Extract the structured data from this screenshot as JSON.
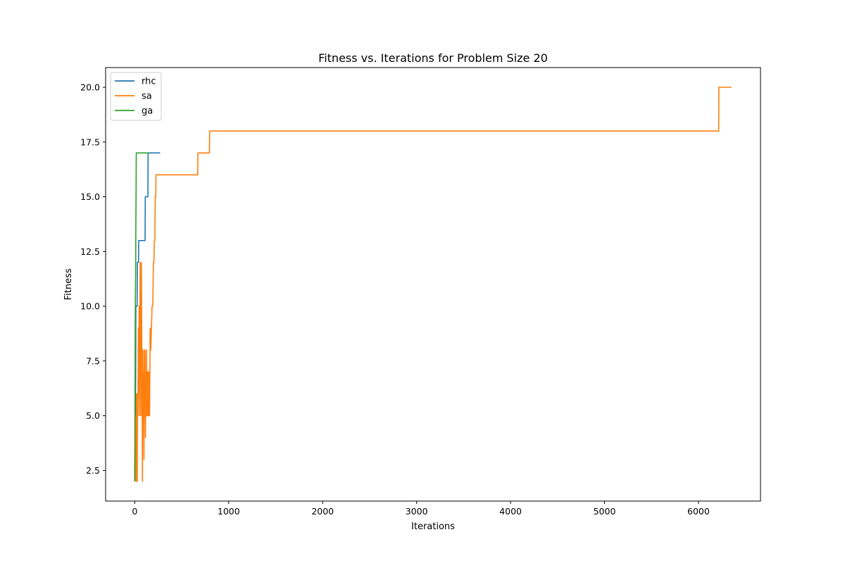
{
  "chart_data": {
    "type": "line",
    "title": "Fitness vs. Iterations for Problem Size 20",
    "xlabel": "Iterations",
    "ylabel": "Fitness",
    "xlim": [
      -310,
      6660
    ],
    "ylim": [
      1.1,
      20.9
    ],
    "xticks": [
      0,
      1000,
      2000,
      3000,
      4000,
      5000,
      6000
    ],
    "xtick_labels": [
      "0",
      "1000",
      "2000",
      "3000",
      "4000",
      "5000",
      "6000"
    ],
    "yticks": [
      2.5,
      5.0,
      7.5,
      10.0,
      12.5,
      15.0,
      17.5,
      20.0
    ],
    "ytick_labels": [
      "2.5",
      "5.0",
      "7.5",
      "10.0",
      "12.5",
      "15.0",
      "17.5",
      "20.0"
    ],
    "grid": false,
    "legend_position": "upper-left",
    "series": [
      {
        "name": "rhc",
        "color": "#1f77b4",
        "points": [
          [
            0,
            2
          ],
          [
            5,
            4
          ],
          [
            10,
            7
          ],
          [
            12,
            10
          ],
          [
            25,
            10
          ],
          [
            28,
            12
          ],
          [
            40,
            12
          ],
          [
            42,
            13
          ],
          [
            110,
            13
          ],
          [
            112,
            15
          ],
          [
            140,
            15
          ],
          [
            142,
            17
          ],
          [
            270,
            17
          ]
        ]
      },
      {
        "name": "sa",
        "color": "#ff7f0e",
        "points": [
          [
            0,
            2
          ],
          [
            6,
            3
          ],
          [
            10,
            5
          ],
          [
            14,
            2
          ],
          [
            18,
            6
          ],
          [
            22,
            4
          ],
          [
            26,
            2
          ],
          [
            30,
            6
          ],
          [
            34,
            5
          ],
          [
            38,
            9
          ],
          [
            42,
            6
          ],
          [
            46,
            10
          ],
          [
            50,
            5
          ],
          [
            54,
            9
          ],
          [
            58,
            12
          ],
          [
            62,
            8
          ],
          [
            66,
            5
          ],
          [
            70,
            12
          ],
          [
            74,
            9
          ],
          [
            78,
            6
          ],
          [
            82,
            2
          ],
          [
            86,
            8
          ],
          [
            90,
            5
          ],
          [
            94,
            7
          ],
          [
            98,
            3
          ],
          [
            102,
            8
          ],
          [
            106,
            5
          ],
          [
            110,
            8
          ],
          [
            114,
            4
          ],
          [
            118,
            7
          ],
          [
            122,
            5
          ],
          [
            126,
            8
          ],
          [
            130,
            5
          ],
          [
            134,
            7
          ],
          [
            138,
            5
          ],
          [
            142,
            7
          ],
          [
            146,
            5
          ],
          [
            152,
            7
          ],
          [
            158,
            5
          ],
          [
            164,
            9
          ],
          [
            170,
            8
          ],
          [
            178,
            9
          ],
          [
            184,
            10
          ],
          [
            192,
            10
          ],
          [
            198,
            12
          ],
          [
            204,
            12
          ],
          [
            208,
            13
          ],
          [
            214,
            13
          ],
          [
            218,
            15
          ],
          [
            224,
            15
          ],
          [
            226,
            16
          ],
          [
            670,
            16
          ],
          [
            672,
            17
          ],
          [
            795,
            17
          ],
          [
            797,
            18
          ],
          [
            6215,
            18
          ],
          [
            6217,
            20
          ],
          [
            6350,
            20
          ]
        ]
      },
      {
        "name": "ga",
        "color": "#2ca02c",
        "points": [
          [
            0,
            2
          ],
          [
            6,
            10
          ],
          [
            8,
            11
          ],
          [
            10,
            12
          ],
          [
            12,
            14
          ],
          [
            14,
            15
          ],
          [
            16,
            17
          ],
          [
            150,
            17
          ]
        ]
      }
    ]
  }
}
